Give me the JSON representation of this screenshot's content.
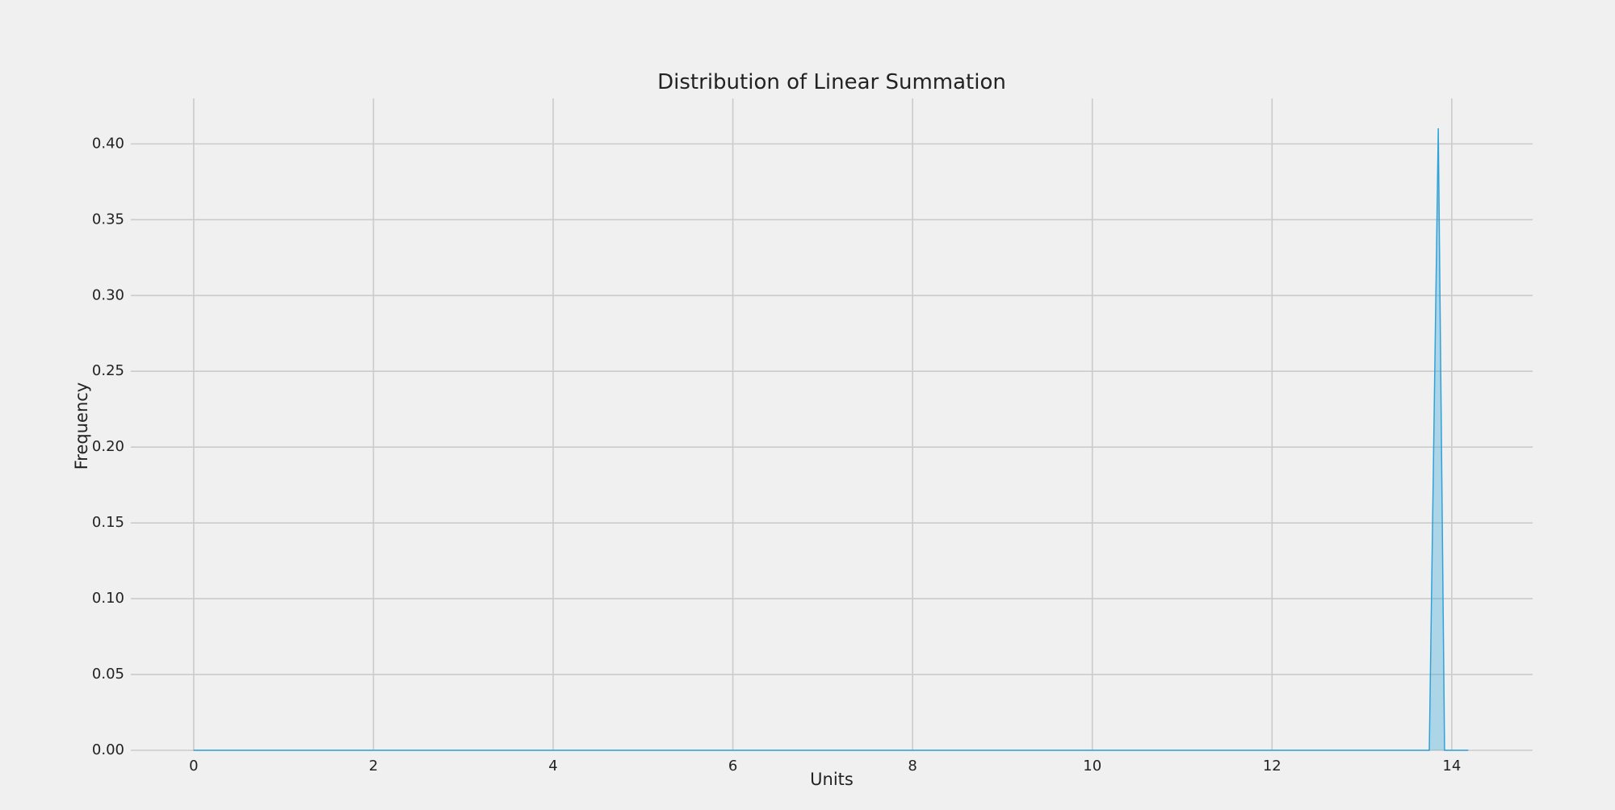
{
  "chart_data": {
    "type": "area",
    "title": "Distribution of Linear Summation",
    "xlabel": "Units",
    "ylabel": "Frequency",
    "xlim": [
      -0.7,
      14.9
    ],
    "ylim": [
      0,
      0.43
    ],
    "x_ticks": [
      "0",
      "2",
      "4",
      "6",
      "8",
      "10",
      "12",
      "14"
    ],
    "y_ticks": [
      "0.00",
      "0.05",
      "0.10",
      "0.15",
      "0.20",
      "0.25",
      "0.30",
      "0.35",
      "0.40"
    ],
    "grid": true,
    "series": [
      {
        "x": [
          0.0,
          13.75,
          13.85,
          13.92,
          14.18
        ],
        "y": [
          0.0,
          0.0,
          0.41,
          0.0,
          0.0
        ]
      }
    ],
    "colors": {
      "background": "#f0f0f0",
      "grid": "#cbcbcb",
      "line": "#30a2da",
      "fill": "#30a2da"
    }
  }
}
